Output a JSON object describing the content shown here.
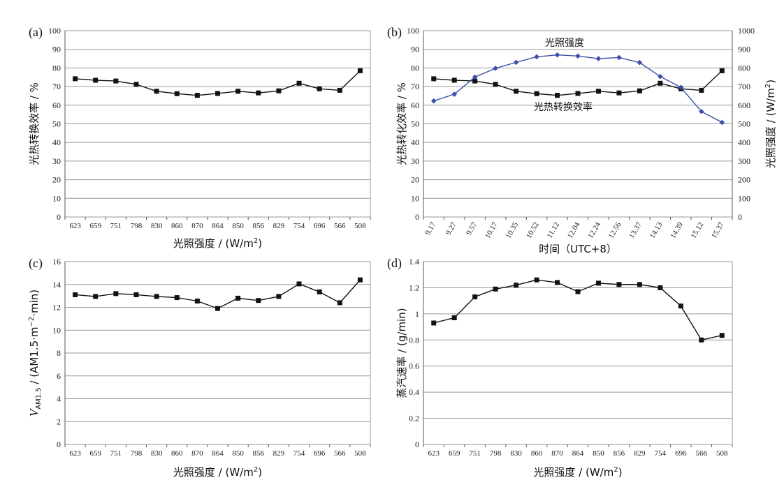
{
  "chart_data": [
    {
      "id": "a",
      "type": "line",
      "panel_label": "(a)",
      "categories": [
        "623",
        "659",
        "751",
        "798",
        "830",
        "860",
        "870",
        "864",
        "850",
        "856",
        "829",
        "754",
        "696",
        "566",
        "508"
      ],
      "xlabel": "光照强度 / (W/m²)",
      "ylabel": "光热转换效率 / %",
      "ylim": [
        0,
        100
      ],
      "yticks": [
        0,
        10,
        20,
        30,
        40,
        50,
        60,
        70,
        80,
        90,
        100
      ],
      "grid": true,
      "series": [
        {
          "values": [
            74.2,
            73.4,
            73.0,
            71.2,
            67.5,
            66.2,
            65.3,
            66.3,
            67.5,
            66.6,
            67.7,
            71.8,
            68.8,
            68.0,
            78.5
          ],
          "color": "#111111",
          "marker": "square"
        }
      ]
    },
    {
      "id": "b",
      "type": "line",
      "panel_label": "(b)",
      "categories": [
        "9.17",
        "9.27",
        "9.57",
        "10.17",
        "10.35",
        "10.52",
        "11.12",
        "12.04",
        "12.24",
        "12.56",
        "13.37",
        "14.13",
        "14.39",
        "15.12",
        "15.37"
      ],
      "xlabel": "时间（UTC+8）",
      "ylabel": "光热转化效率 / %",
      "y2label": "光照强度 / (W/m²)",
      "ylim": [
        0,
        100
      ],
      "y2lim": [
        0,
        1000
      ],
      "yticks": [
        0,
        10,
        20,
        30,
        40,
        50,
        60,
        70,
        80,
        90,
        100
      ],
      "y2ticks": [
        0,
        100,
        200,
        300,
        400,
        500,
        600,
        700,
        800,
        900,
        1000
      ],
      "grid": true,
      "series": [
        {
          "name": "光热转换效率",
          "axis": "left",
          "values": [
            74.2,
            73.4,
            73.0,
            71.2,
            67.5,
            66.2,
            65.3,
            66.3,
            67.5,
            66.6,
            67.7,
            71.8,
            68.8,
            68.0,
            78.5
          ],
          "color": "#111111",
          "marker": "square"
        },
        {
          "name": "光照强度",
          "axis": "right",
          "values": [
            623,
            659,
            751,
            798,
            830,
            860,
            870,
            864,
            850,
            856,
            829,
            754,
            696,
            566,
            508
          ],
          "color": "#3a4fa8",
          "marker": "diamond"
        }
      ]
    },
    {
      "id": "c",
      "type": "line",
      "panel_label": "(c)",
      "categories": [
        "623",
        "659",
        "751",
        "798",
        "830",
        "860",
        "870",
        "864",
        "850",
        "856",
        "829",
        "754",
        "696",
        "566",
        "508"
      ],
      "xlabel": "光照强度 / (W/m²)",
      "ylabel": "V_AM1.5 / (AM1.5·m⁻²·min)",
      "ylim": [
        0,
        16
      ],
      "yticks": [
        0,
        2,
        4,
        6,
        8,
        10,
        12,
        14,
        16
      ],
      "grid": true,
      "series": [
        {
          "values": [
            13.1,
            12.95,
            13.2,
            13.1,
            12.95,
            12.85,
            12.55,
            11.9,
            12.8,
            12.6,
            12.95,
            14.05,
            13.35,
            12.4,
            14.4
          ],
          "color": "#111111",
          "marker": "square"
        }
      ]
    },
    {
      "id": "d",
      "type": "line",
      "panel_label": "(d)",
      "categories": [
        "623",
        "659",
        "751",
        "798",
        "830",
        "860",
        "870",
        "864",
        "850",
        "856",
        "829",
        "754",
        "696",
        "566",
        "508"
      ],
      "xlabel": "光照强度 / (W/m²)",
      "ylabel": "蒸汽速率 / (g/min)",
      "ylim": [
        0,
        1.4
      ],
      "yticks": [
        "0",
        "0.2",
        "0.4",
        "0.6",
        "0.8",
        "1",
        "1.2",
        "1.4"
      ],
      "grid": true,
      "series": [
        {
          "values": [
            0.93,
            0.97,
            1.13,
            1.19,
            1.22,
            1.26,
            1.24,
            1.17,
            1.235,
            1.225,
            1.225,
            1.2,
            1.06,
            0.8,
            0.835
          ],
          "color": "#111111",
          "marker": "square"
        }
      ]
    }
  ],
  "annotations": {
    "b_series_right": "光照强度",
    "b_series_left": "光热转换效率"
  },
  "axis_text": {
    "c_ylabel_v": "V",
    "c_ylabel_sub": "AM1.5",
    "c_ylabel_rest": " / (AM1.5·m",
    "c_ylabel_sup": "−2",
    "c_ylabel_end": "·min)",
    "xlabel_main": "光照强度 / (W/m",
    "xlabel_sup": "2",
    "xlabel_end": ")",
    "ylabel_b_right_main": "光照强度 / (W/m",
    "ylabel_b_right_sup": "2",
    "ylabel_b_right_end": ")"
  }
}
